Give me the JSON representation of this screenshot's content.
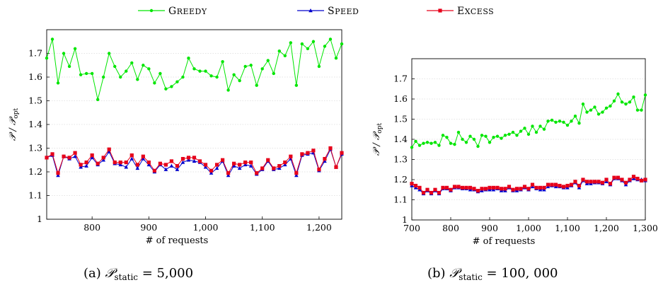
{
  "legend": [
    {
      "label": "Greedy",
      "color": "#00e600",
      "marker": "circle"
    },
    {
      "label": "Speed",
      "color": "#0000cc",
      "marker": "triangle"
    },
    {
      "label": "Excess",
      "color": "#e6001a",
      "marker": "square"
    }
  ],
  "chart_data": [
    {
      "type": "line",
      "caption": "(a) P_static = 5,000",
      "caption_prefix": "(a)",
      "caption_math": "𝒫",
      "caption_sub": "static",
      "caption_value": "= 5,000",
      "xlabel": "# of requests",
      "ylabel": "𝒫 / 𝒫",
      "ylabel_sub": "opt",
      "xlim": [
        720,
        1240
      ],
      "ylim": [
        1.0,
        1.8
      ],
      "xticks": [
        800,
        900,
        1000,
        1100,
        1200
      ],
      "xtick_labels": [
        "800",
        "900",
        "1,000",
        "1,100",
        "1,200"
      ],
      "yticks": [
        1.0,
        1.1,
        1.2,
        1.3,
        1.4,
        1.5,
        1.6,
        1.7
      ],
      "ytick_labels": [
        "1",
        "1.1",
        "1.2",
        "1.3",
        "1.4",
        "1.5",
        "1.6",
        "1.7"
      ],
      "grid": "horizontal",
      "x": [
        720,
        730,
        740,
        750,
        760,
        770,
        780,
        790,
        800,
        810,
        820,
        830,
        840,
        850,
        860,
        870,
        880,
        890,
        900,
        910,
        920,
        930,
        940,
        950,
        960,
        970,
        980,
        990,
        1000,
        1010,
        1020,
        1030,
        1040,
        1050,
        1060,
        1070,
        1080,
        1090,
        1100,
        1110,
        1120,
        1130,
        1140,
        1150,
        1160,
        1170,
        1180,
        1190,
        1200,
        1210,
        1220,
        1230,
        1240
      ],
      "series": [
        {
          "name": "Greedy",
          "values": [
            1.68,
            1.76,
            1.575,
            1.7,
            1.645,
            1.72,
            1.61,
            1.615,
            1.615,
            1.505,
            1.6,
            1.7,
            1.645,
            1.6,
            1.625,
            1.66,
            1.59,
            1.65,
            1.635,
            1.575,
            1.615,
            1.55,
            1.56,
            1.58,
            1.6,
            1.68,
            1.635,
            1.625,
            1.625,
            1.605,
            1.6,
            1.665,
            1.545,
            1.61,
            1.585,
            1.645,
            1.65,
            1.565,
            1.635,
            1.67,
            1.615,
            1.71,
            1.69,
            1.745,
            1.565,
            1.74,
            1.72,
            1.75,
            1.645,
            1.73,
            1.76,
            1.68,
            1.74
          ]
        },
        {
          "name": "Speed",
          "values": [
            1.26,
            1.27,
            1.185,
            1.265,
            1.255,
            1.265,
            1.22,
            1.225,
            1.26,
            1.23,
            1.25,
            1.285,
            1.235,
            1.23,
            1.22,
            1.255,
            1.215,
            1.255,
            1.23,
            1.2,
            1.23,
            1.21,
            1.225,
            1.21,
            1.24,
            1.25,
            1.245,
            1.24,
            1.22,
            1.195,
            1.215,
            1.245,
            1.185,
            1.225,
            1.215,
            1.23,
            1.225,
            1.19,
            1.21,
            1.245,
            1.21,
            1.215,
            1.23,
            1.255,
            1.185,
            1.27,
            1.275,
            1.28,
            1.205,
            1.245,
            1.295,
            1.22,
            1.275
          ]
        },
        {
          "name": "Excess",
          "values": [
            1.26,
            1.275,
            1.195,
            1.265,
            1.26,
            1.28,
            1.23,
            1.24,
            1.27,
            1.235,
            1.26,
            1.295,
            1.24,
            1.24,
            1.24,
            1.27,
            1.23,
            1.265,
            1.24,
            1.205,
            1.235,
            1.23,
            1.245,
            1.225,
            1.255,
            1.26,
            1.26,
            1.245,
            1.23,
            1.205,
            1.23,
            1.25,
            1.195,
            1.235,
            1.23,
            1.24,
            1.24,
            1.195,
            1.215,
            1.25,
            1.215,
            1.225,
            1.24,
            1.265,
            1.195,
            1.275,
            1.28,
            1.29,
            1.21,
            1.255,
            1.3,
            1.22,
            1.28
          ]
        }
      ]
    },
    {
      "type": "line",
      "caption": "(b) P_static = 100,000",
      "caption_prefix": "(b)",
      "caption_math": "𝒫",
      "caption_sub": "static",
      "caption_value": "= 100, 000",
      "xlabel": "# of requests",
      "ylabel": "𝒫 / 𝒫",
      "ylabel_sub": "opt",
      "xlim": [
        700,
        1300
      ],
      "ylim": [
        1.0,
        1.8
      ],
      "xticks": [
        700,
        800,
        900,
        1000,
        1100,
        1200,
        1300
      ],
      "xtick_labels": [
        "700",
        "800",
        "900",
        "1,000",
        "1,100",
        "1,200",
        "1,300"
      ],
      "yticks": [
        1.0,
        1.1,
        1.2,
        1.3,
        1.4,
        1.5,
        1.6,
        1.7
      ],
      "ytick_labels": [
        "1",
        "1.1",
        "1.2",
        "1.3",
        "1.4",
        "1.5",
        "1.6",
        "1.7"
      ],
      "grid": "horizontal",
      "x": [
        700,
        710,
        720,
        730,
        740,
        750,
        760,
        770,
        780,
        790,
        800,
        810,
        820,
        830,
        840,
        850,
        860,
        870,
        880,
        890,
        900,
        910,
        920,
        930,
        940,
        950,
        960,
        970,
        980,
        990,
        1000,
        1010,
        1020,
        1030,
        1040,
        1050,
        1060,
        1070,
        1080,
        1090,
        1100,
        1110,
        1120,
        1130,
        1140,
        1150,
        1160,
        1170,
        1180,
        1190,
        1200,
        1210,
        1220,
        1230,
        1240,
        1250,
        1260,
        1270,
        1280,
        1290,
        1300
      ],
      "series": [
        {
          "name": "Greedy",
          "values": [
            1.36,
            1.39,
            1.37,
            1.38,
            1.385,
            1.38,
            1.385,
            1.37,
            1.42,
            1.41,
            1.38,
            1.375,
            1.435,
            1.4,
            1.385,
            1.415,
            1.4,
            1.365,
            1.42,
            1.415,
            1.385,
            1.41,
            1.415,
            1.405,
            1.42,
            1.425,
            1.435,
            1.42,
            1.44,
            1.455,
            1.425,
            1.465,
            1.435,
            1.465,
            1.45,
            1.49,
            1.495,
            1.485,
            1.49,
            1.485,
            1.47,
            1.49,
            1.515,
            1.48,
            1.575,
            1.535,
            1.545,
            1.56,
            1.525,
            1.535,
            1.555,
            1.565,
            1.59,
            1.625,
            1.585,
            1.575,
            1.585,
            1.61,
            1.545,
            1.545,
            1.62
          ]
        },
        {
          "name": "Speed",
          "values": [
            1.17,
            1.16,
            1.15,
            1.13,
            1.145,
            1.13,
            1.145,
            1.13,
            1.155,
            1.155,
            1.145,
            1.16,
            1.16,
            1.155,
            1.155,
            1.15,
            1.15,
            1.14,
            1.145,
            1.15,
            1.15,
            1.15,
            1.155,
            1.145,
            1.145,
            1.16,
            1.145,
            1.145,
            1.15,
            1.16,
            1.15,
            1.165,
            1.155,
            1.15,
            1.15,
            1.165,
            1.17,
            1.165,
            1.165,
            1.16,
            1.16,
            1.17,
            1.185,
            1.16,
            1.195,
            1.18,
            1.18,
            1.185,
            1.185,
            1.18,
            1.19,
            1.175,
            1.205,
            1.205,
            1.195,
            1.175,
            1.195,
            1.205,
            1.2,
            1.2,
            1.195
          ]
        },
        {
          "name": "Excess",
          "values": [
            1.18,
            1.17,
            1.16,
            1.135,
            1.15,
            1.135,
            1.15,
            1.135,
            1.16,
            1.16,
            1.15,
            1.165,
            1.165,
            1.16,
            1.16,
            1.16,
            1.155,
            1.145,
            1.155,
            1.155,
            1.16,
            1.16,
            1.16,
            1.155,
            1.155,
            1.165,
            1.15,
            1.155,
            1.155,
            1.165,
            1.155,
            1.175,
            1.16,
            1.16,
            1.16,
            1.175,
            1.175,
            1.175,
            1.17,
            1.165,
            1.17,
            1.175,
            1.19,
            1.17,
            1.2,
            1.19,
            1.19,
            1.19,
            1.19,
            1.185,
            1.2,
            1.18,
            1.21,
            1.21,
            1.2,
            1.185,
            1.2,
            1.215,
            1.205,
            1.195,
            1.2
          ]
        }
      ]
    }
  ]
}
